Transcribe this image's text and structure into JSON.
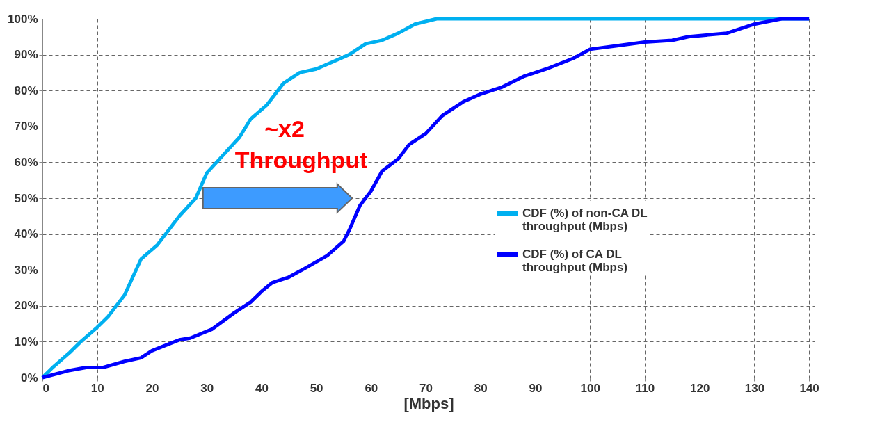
{
  "chart_data": {
    "type": "line",
    "xlabel": "[Mbps]",
    "xlim": [
      0,
      141
    ],
    "xticks": [
      0,
      10,
      20,
      30,
      40,
      50,
      60,
      70,
      80,
      90,
      100,
      110,
      120,
      130,
      140
    ],
    "ylim": [
      0,
      100
    ],
    "yticks": [
      {
        "value": 0,
        "label": "0%"
      },
      {
        "value": 10,
        "label": "10%"
      },
      {
        "value": 20,
        "label": "20%"
      },
      {
        "value": 30,
        "label": "30%"
      },
      {
        "value": 40,
        "label": "40%"
      },
      {
        "value": 50,
        "label": "50%"
      },
      {
        "value": 60,
        "label": "60%"
      },
      {
        "value": 70,
        "label": "70%"
      },
      {
        "value": 80,
        "label": "80%"
      },
      {
        "value": 90,
        "label": "90%"
      },
      {
        "value": 100,
        "label": "100%"
      }
    ],
    "grid": true,
    "legend": "right",
    "marker": "none",
    "line_style": "solid",
    "annotations": [
      "~x2",
      "Throughput"
    ],
    "series": [
      {
        "name": "CDF (%) of non-CA DL throughput (Mbps)",
        "color": "#00b0f0",
        "x": [
          0,
          2,
          5,
          7,
          10,
          12,
          15,
          18,
          21,
          25,
          28,
          30,
          33,
          36,
          38,
          41,
          44,
          47,
          50,
          53,
          56,
          59,
          62,
          65,
          68,
          72,
          140
        ],
        "values": [
          0,
          3,
          7,
          10,
          14,
          17,
          23,
          33,
          37,
          45,
          50,
          57,
          62,
          67,
          72,
          76,
          82,
          85,
          86,
          88,
          90,
          93,
          94,
          96,
          98.5,
          100,
          100
        ]
      },
      {
        "name": "CDF (%) of CA DL throughput (Mbps)",
        "color": "#0000ff",
        "x": [
          0,
          5,
          8,
          11,
          15,
          18,
          20,
          25,
          27,
          31,
          35,
          38,
          40,
          42,
          45,
          48,
          52,
          55,
          56,
          58,
          60,
          62,
          65,
          67,
          70,
          73,
          77,
          80,
          84,
          88,
          92,
          97,
          100,
          105,
          110,
          115,
          118,
          125,
          130,
          135,
          140
        ],
        "values": [
          0,
          2,
          2.8,
          2.8,
          4.5,
          5.5,
          7.5,
          10.5,
          11,
          13.5,
          18,
          21,
          24,
          26.5,
          28,
          30.5,
          34,
          38,
          41,
          48,
          52,
          57.5,
          61,
          65,
          68,
          73,
          77,
          79,
          81,
          84,
          86,
          89,
          91.5,
          92.5,
          93.5,
          94,
          95,
          96,
          98.5,
          100,
          100
        ]
      }
    ]
  }
}
